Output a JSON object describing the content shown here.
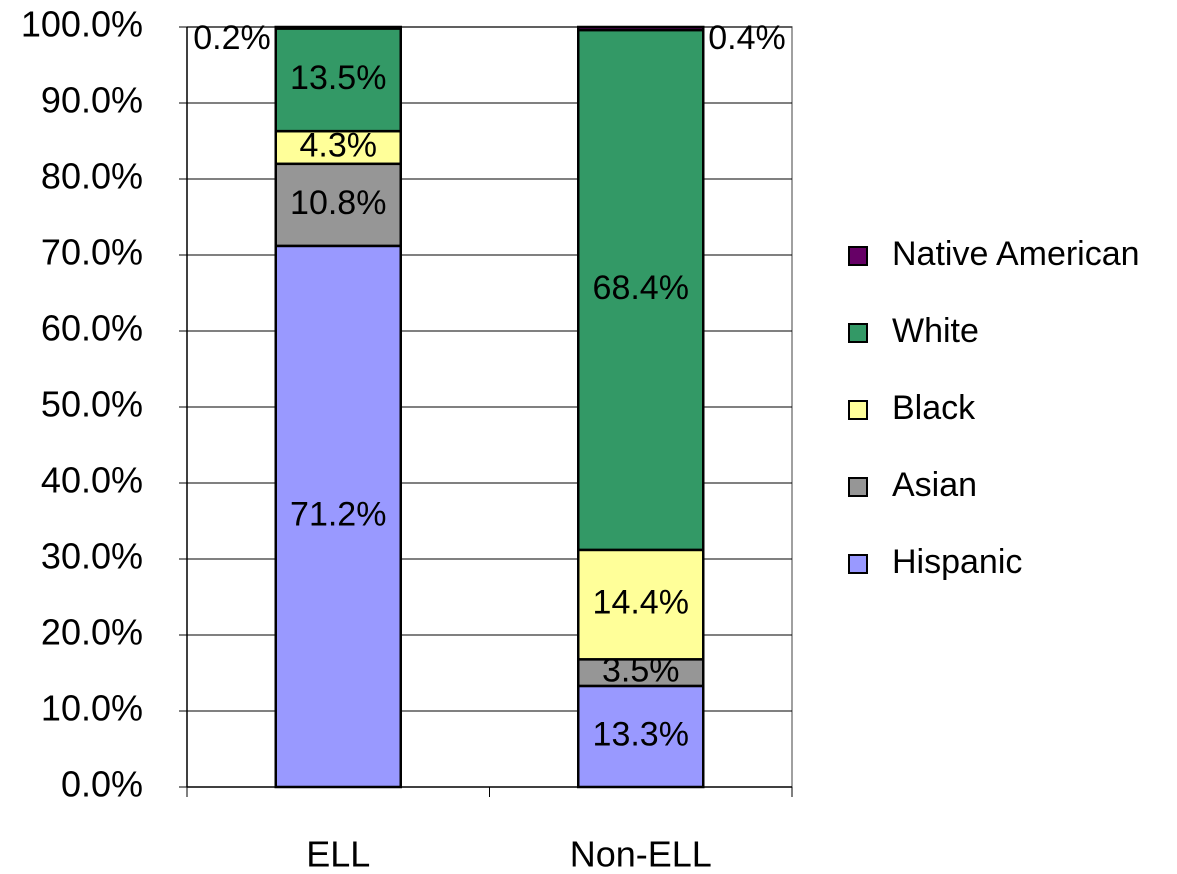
{
  "chart_data": {
    "type": "stacked_bar",
    "categories": [
      "ELL",
      "Non-ELL"
    ],
    "series": [
      {
        "name": "Hispanic",
        "color": "#9999ff",
        "values": [
          71.2,
          13.3
        ],
        "value_labels": [
          "71.2%",
          "13.3%"
        ]
      },
      {
        "name": "Asian",
        "color": "#969696",
        "values": [
          10.8,
          3.5
        ],
        "value_labels": [
          "10.8%",
          "3.5%"
        ]
      },
      {
        "name": "Black",
        "color": "#ffff99",
        "values": [
          4.3,
          14.4
        ],
        "value_labels": [
          "4.3%",
          "14.4%"
        ]
      },
      {
        "name": "White",
        "color": "#339966",
        "values": [
          13.5,
          68.4
        ],
        "value_labels": [
          "13.5%",
          "68.4%"
        ]
      },
      {
        "name": "Native American",
        "color": "#660066",
        "values": [
          0.2,
          0.4
        ],
        "value_labels": [
          "0.2%",
          "0.4%"
        ]
      }
    ],
    "ylim": [
      0,
      100
    ],
    "yticks": [
      {
        "value": 0,
        "label": "0.0%"
      },
      {
        "value": 10,
        "label": "10.0%"
      },
      {
        "value": 20,
        "label": "20.0%"
      },
      {
        "value": 30,
        "label": "30.0%"
      },
      {
        "value": 40,
        "label": "40.0%"
      },
      {
        "value": 50,
        "label": "50.0%"
      },
      {
        "value": 60,
        "label": "60.0%"
      },
      {
        "value": 70,
        "label": "70.0%"
      },
      {
        "value": 80,
        "label": "80.0%"
      },
      {
        "value": 90,
        "label": "90.0%"
      },
      {
        "value": 100,
        "label": "100.0%"
      }
    ],
    "grid": true,
    "legend": "right"
  }
}
